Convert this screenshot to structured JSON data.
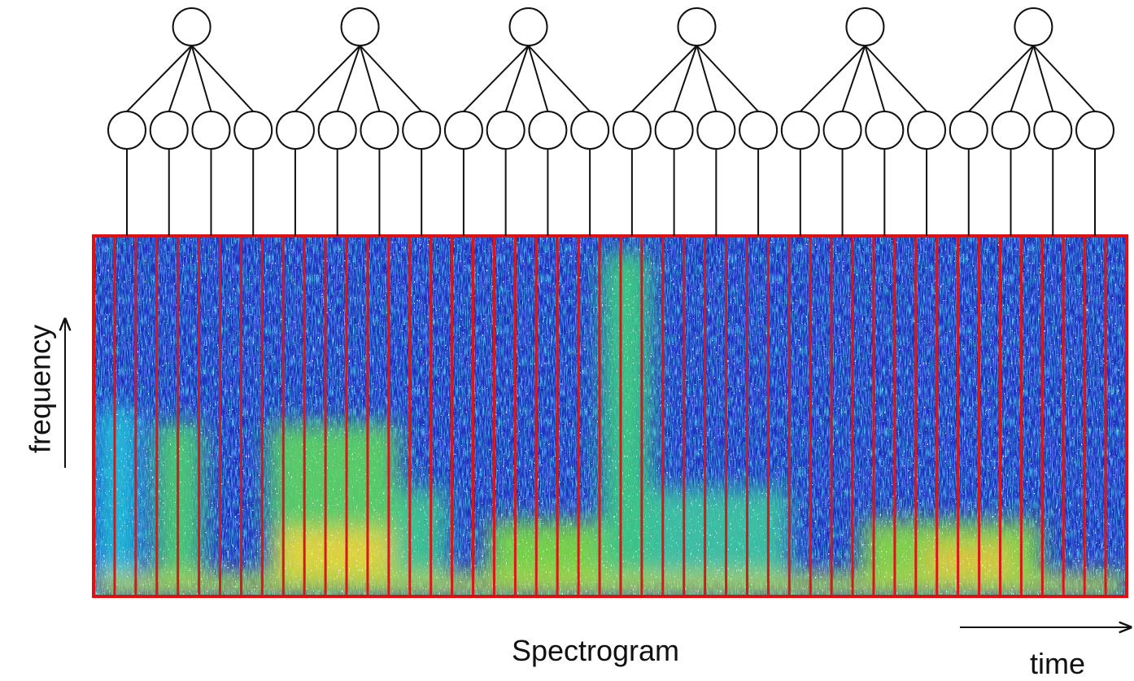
{
  "labels": {
    "y_axis": "frequency",
    "x_axis": "time",
    "caption": "Spectrogram"
  }
}
